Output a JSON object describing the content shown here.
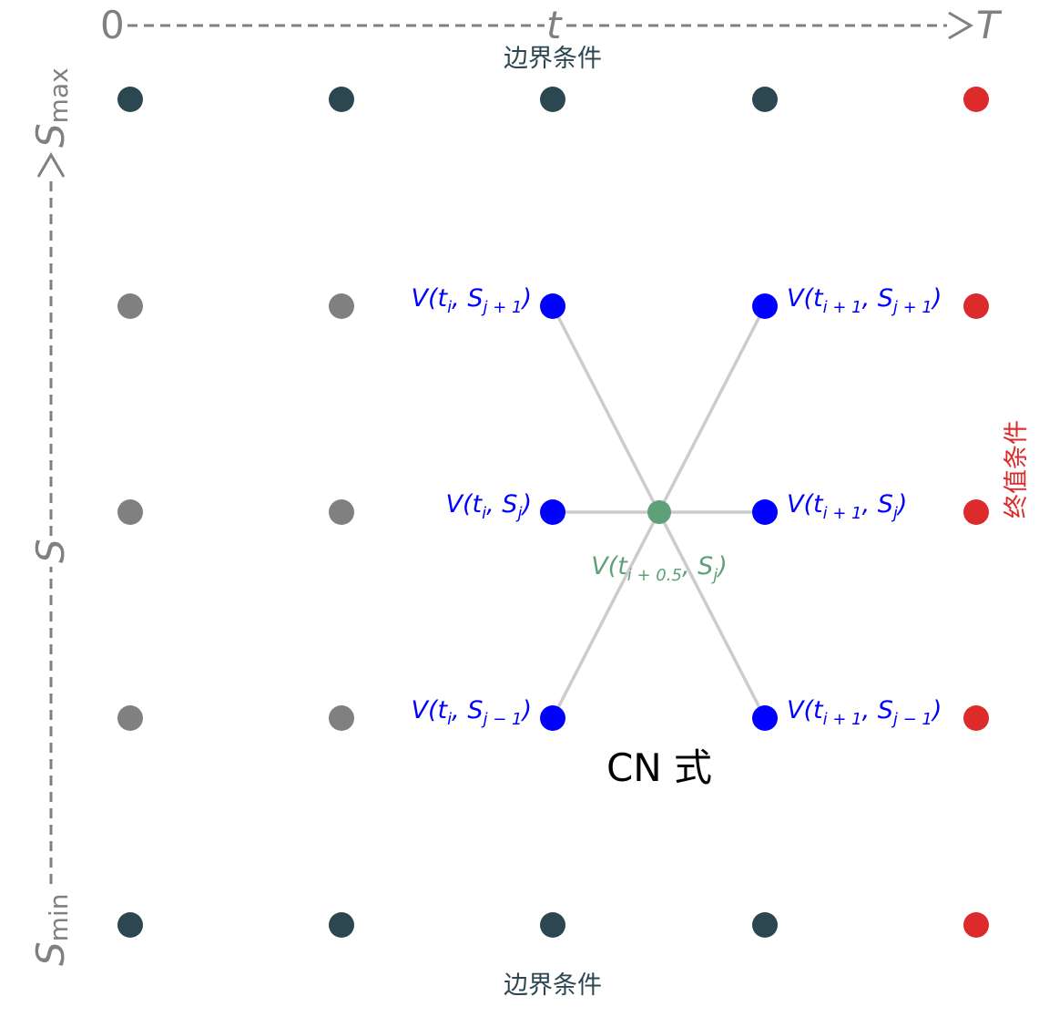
{
  "axes": {
    "t_axis": {
      "start": "0",
      "mid": "t",
      "end": "T"
    },
    "s_axis": {
      "start": "S",
      "start_sub": "min",
      "mid": "S",
      "end": "S",
      "end_sub": "max"
    }
  },
  "labels": {
    "boundary_top": "边界条件",
    "boundary_bottom": "边界条件",
    "terminal": "终值条件",
    "scheme": "CN 式"
  },
  "stencil": {
    "left_top": {
      "main": "V(t",
      "s1": "i",
      "mid": ", S",
      "s2": "j + 1",
      "close": ")"
    },
    "left_mid": {
      "main": "V(t",
      "s1": "i",
      "mid": ", S",
      "s2": "j",
      "close": ")"
    },
    "left_bot": {
      "main": "V(t",
      "s1": "i",
      "mid": ", S",
      "s2": "j − 1",
      "close": ")"
    },
    "right_top": {
      "main": "V(t",
      "s1": "i + 1",
      "mid": ", S",
      "s2": "j + 1",
      "close": ")"
    },
    "right_mid": {
      "main": "V(t",
      "s1": "i + 1",
      "mid": ", S",
      "s2": "j",
      "close": ")"
    },
    "right_bot": {
      "main": "V(t",
      "s1": "i + 1",
      "mid": ", S",
      "s2": "j − 1",
      "close": ")"
    },
    "center": {
      "main": "V(t",
      "s1": "i + 0.5",
      "mid": ", S",
      "s2": "j",
      "close": ")"
    }
  },
  "colors": {
    "boundary_node": "#2c4750",
    "interior_node": "#808080",
    "stencil_node": "#0000ff",
    "center_node": "#5fa078",
    "terminal_node": "#dd2a2a",
    "connector": "#cccccc"
  }
}
